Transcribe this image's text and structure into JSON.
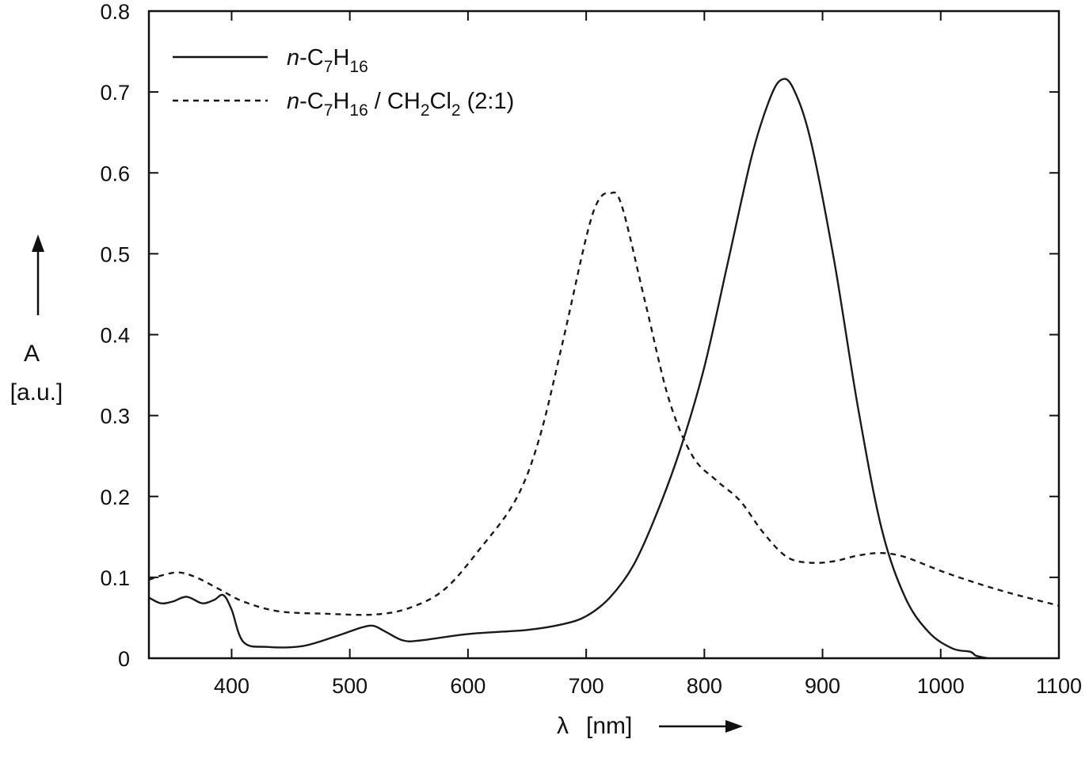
{
  "chart_data": {
    "type": "line",
    "title": "",
    "xlabel": "λ [nm]",
    "ylabel": "A [a.u.]",
    "xlim": [
      330,
      1100
    ],
    "ylim": [
      0,
      0.8
    ],
    "x_ticks": [
      "400",
      "500",
      "600",
      "700",
      "800",
      "900",
      "1000",
      "1100"
    ],
    "y_ticks": [
      "0",
      "0.1",
      "0.2",
      "0.3",
      "0.4",
      "0.5",
      "0.6",
      "0.7",
      "0.8"
    ],
    "grid": false,
    "legend_position": "upper-left",
    "series": [
      {
        "name": "n-C7H16",
        "style": "solid",
        "x": [
          330,
          340,
          350,
          362,
          375,
          385,
          393,
          400,
          410,
          430,
          460,
          490,
          510,
          520,
          530,
          545,
          560,
          600,
          650,
          680,
          700,
          720,
          740,
          760,
          780,
          800,
          820,
          840,
          855,
          865,
          875,
          890,
          910,
          930,
          950,
          970,
          990,
          1010,
          1025,
          1030,
          1040
        ],
        "values": [
          0.075,
          0.068,
          0.07,
          0.076,
          0.068,
          0.072,
          0.078,
          0.06,
          0.02,
          0.014,
          0.015,
          0.028,
          0.038,
          0.04,
          0.033,
          0.022,
          0.022,
          0.03,
          0.035,
          0.042,
          0.052,
          0.075,
          0.115,
          0.18,
          0.26,
          0.36,
          0.49,
          0.62,
          0.69,
          0.715,
          0.705,
          0.64,
          0.49,
          0.31,
          0.16,
          0.075,
          0.032,
          0.012,
          0.008,
          0.003,
          0.0
        ]
      },
      {
        "name": "n-C7H16 / CH2Cl2 (2:1)",
        "style": "dashed",
        "x": [
          330,
          340,
          355,
          370,
          390,
          410,
          440,
          480,
          520,
          550,
          580,
          610,
          640,
          660,
          680,
          700,
          710,
          720,
          730,
          750,
          770,
          790,
          810,
          830,
          850,
          870,
          890,
          910,
          930,
          950,
          970,
          1000,
          1030,
          1060,
          1100
        ],
        "values": [
          0.097,
          0.102,
          0.106,
          0.1,
          0.085,
          0.07,
          0.058,
          0.055,
          0.054,
          0.062,
          0.085,
          0.135,
          0.195,
          0.27,
          0.39,
          0.52,
          0.565,
          0.575,
          0.56,
          0.44,
          0.32,
          0.25,
          0.22,
          0.195,
          0.155,
          0.125,
          0.118,
          0.12,
          0.127,
          0.13,
          0.125,
          0.108,
          0.093,
          0.08,
          0.065
        ]
      }
    ]
  },
  "legend": {
    "items": [
      {
        "prefix": "n",
        "text": "-C",
        "sub1": "7",
        "mid": "H",
        "sub2": "16",
        "rest": ""
      },
      {
        "prefix": "n",
        "text": "-C",
        "sub1": "7",
        "mid": "H",
        "sub2": "16",
        "rest": " / CH",
        "sub3": "2",
        "rest2": "Cl",
        "sub4": "2",
        "tail": " (2:1)"
      }
    ]
  },
  "axes": {
    "ylabel_symbol": "A",
    "ylabel_unit": "[a.u.]",
    "xlabel_symbol": "λ",
    "xlabel_unit": "[nm]"
  }
}
